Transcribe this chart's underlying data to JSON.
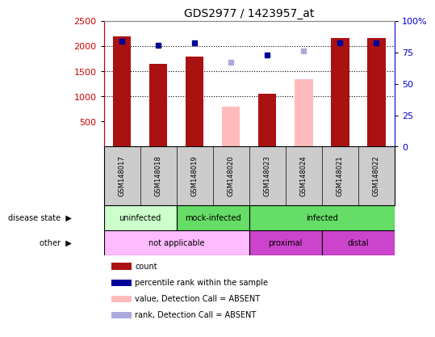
{
  "title": "GDS2977 / 1423957_at",
  "samples": [
    "GSM148017",
    "GSM148018",
    "GSM148019",
    "GSM148020",
    "GSM148023",
    "GSM148024",
    "GSM148021",
    "GSM148022"
  ],
  "bar_values": [
    2190,
    1650,
    1800,
    null,
    1060,
    null,
    2170,
    2160
  ],
  "bar_values_absent": [
    null,
    null,
    null,
    790,
    null,
    1340,
    null,
    null
  ],
  "percentile_values": [
    84,
    81,
    83,
    null,
    73,
    null,
    83,
    83
  ],
  "percentile_absent": [
    null,
    null,
    null,
    67,
    null,
    76,
    null,
    null
  ],
  "bar_color": "#aa1111",
  "bar_absent_color": "#ffbbbb",
  "dot_color": "#000099",
  "dot_absent_color": "#aaaadd",
  "ylim_left": [
    0,
    2500
  ],
  "ylim_right": [
    0,
    100
  ],
  "yticks_left": [
    500,
    1000,
    1500,
    2000,
    2500
  ],
  "yticks_right": [
    0,
    25,
    50,
    75,
    100
  ],
  "ytick_right_labels": [
    "0",
    "25",
    "50",
    "75",
    "100%"
  ],
  "grid_dotted_lines": [
    1000,
    1500,
    2000
  ],
  "disease_state_data": [
    {
      "label": "uninfected",
      "start": 0,
      "end": 2,
      "color": "#ccffcc"
    },
    {
      "label": "mock-infected",
      "start": 2,
      "end": 4,
      "color": "#66dd66"
    },
    {
      "label": "infected",
      "start": 4,
      "end": 8,
      "color": "#66dd66"
    }
  ],
  "other_data": [
    {
      "label": "not applicable",
      "start": 0,
      "end": 4,
      "color": "#ffbbff"
    },
    {
      "label": "proximal",
      "start": 4,
      "end": 6,
      "color": "#cc44cc"
    },
    {
      "label": "distal",
      "start": 6,
      "end": 8,
      "color": "#cc44cc"
    }
  ],
  "legend_items": [
    {
      "label": "count",
      "color": "#aa1111"
    },
    {
      "label": "percentile rank within the sample",
      "color": "#000099"
    },
    {
      "label": "value, Detection Call = ABSENT",
      "color": "#ffbbbb"
    },
    {
      "label": "rank, Detection Call = ABSENT",
      "color": "#aaaadd"
    }
  ],
  "bg_color": "#ffffff",
  "left_axis_color": "#cc0000",
  "right_axis_color": "#0000cc",
  "sample_label_bg": "#cccccc",
  "n_samples": 8
}
